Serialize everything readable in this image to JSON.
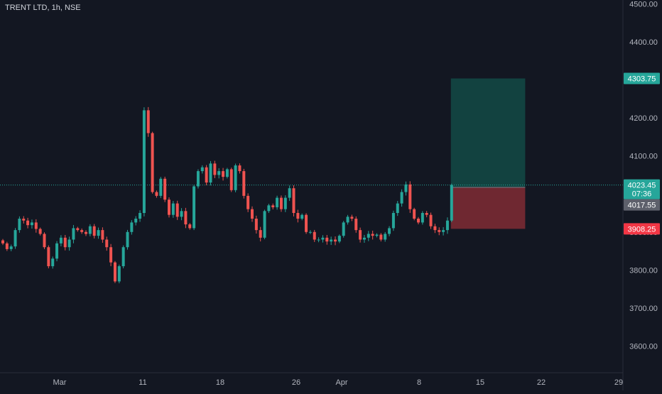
{
  "header": {
    "symbol_title": "TRENT LTD, 1h, NSE"
  },
  "colors": {
    "background": "#131722",
    "up": "#26a69a",
    "down": "#ef5350",
    "axis_text": "#b2b5be",
    "profit_zone": "#134a45",
    "loss_zone": "#7a2a33"
  },
  "chart_data": {
    "type": "candlestick",
    "y_axis": {
      "range": [
        3530,
        4510
      ],
      "ticks": [
        "4500.00",
        "4400.00",
        "4300.00",
        "4200.00",
        "4100.00",
        "4000.00",
        "3900.00",
        "3800.00",
        "3700.00",
        "3600.00"
      ],
      "tick_values": [
        4500,
        4400,
        4300,
        4200,
        4100,
        4000,
        3900,
        3800,
        3700,
        3600
      ]
    },
    "x_axis": {
      "ticks": [
        "Mar",
        "11",
        "18",
        "26",
        "Apr",
        "8",
        "15",
        "22",
        "29"
      ]
    },
    "series": [
      {
        "x": 0,
        "close": 3870
      },
      {
        "x": 1,
        "close": 3855
      },
      {
        "x": 2,
        "close": 3862
      },
      {
        "x": 3,
        "close": 3905
      },
      {
        "x": 4,
        "close": 3935
      },
      {
        "x": 5,
        "close": 3930
      },
      {
        "x": 6,
        "close": 3918
      },
      {
        "x": 7,
        "close": 3925
      },
      {
        "x": 8,
        "close": 3908
      },
      {
        "x": 9,
        "close": 3895
      },
      {
        "x": 10,
        "close": 3860
      },
      {
        "x": 11,
        "close": 3810
      },
      {
        "x": 12,
        "close": 3830
      },
      {
        "x": 13,
        "close": 3870
      },
      {
        "x": 14,
        "close": 3885
      },
      {
        "x": 15,
        "close": 3860
      },
      {
        "x": 16,
        "close": 3880
      },
      {
        "x": 17,
        "close": 3910
      },
      {
        "x": 18,
        "close": 3905
      },
      {
        "x": 19,
        "close": 3900
      },
      {
        "x": 20,
        "close": 3895
      },
      {
        "x": 21,
        "close": 3915
      },
      {
        "x": 22,
        "close": 3890
      },
      {
        "x": 23,
        "close": 3905
      },
      {
        "x": 24,
        "close": 3880
      },
      {
        "x": 25,
        "close": 3860
      },
      {
        "x": 26,
        "close": 3820
      },
      {
        "x": 27,
        "close": 3770
      },
      {
        "x": 28,
        "close": 3810
      },
      {
        "x": 29,
        "close": 3860
      },
      {
        "x": 30,
        "close": 3900
      },
      {
        "x": 31,
        "close": 3925
      },
      {
        "x": 32,
        "close": 3935
      },
      {
        "x": 33,
        "close": 3950
      },
      {
        "x": 34,
        "close": 4220
      },
      {
        "x": 35,
        "close": 4160
      },
      {
        "x": 36,
        "close": 4005
      },
      {
        "x": 37,
        "close": 3995
      },
      {
        "x": 38,
        "close": 4040
      },
      {
        "x": 39,
        "close": 3985
      },
      {
        "x": 40,
        "close": 3945
      },
      {
        "x": 41,
        "close": 3975
      },
      {
        "x": 42,
        "close": 3940
      },
      {
        "x": 43,
        "close": 3955
      },
      {
        "x": 44,
        "close": 3920
      },
      {
        "x": 45,
        "close": 3910
      },
      {
        "x": 46,
        "close": 4020
      },
      {
        "x": 47,
        "close": 4060
      },
      {
        "x": 48,
        "close": 4070
      },
      {
        "x": 49,
        "close": 4030
      },
      {
        "x": 50,
        "close": 4080
      },
      {
        "x": 51,
        "close": 4050
      },
      {
        "x": 52,
        "close": 4060
      },
      {
        "x": 53,
        "close": 4045
      },
      {
        "x": 54,
        "close": 4065
      },
      {
        "x": 55,
        "close": 4010
      },
      {
        "x": 56,
        "close": 4075
      },
      {
        "x": 57,
        "close": 4060
      },
      {
        "x": 58,
        "close": 3995
      },
      {
        "x": 59,
        "close": 3960
      },
      {
        "x": 60,
        "close": 3935
      },
      {
        "x": 61,
        "close": 3905
      },
      {
        "x": 62,
        "close": 3885
      },
      {
        "x": 63,
        "close": 3955
      },
      {
        "x": 64,
        "close": 3970
      },
      {
        "x": 65,
        "close": 3965
      },
      {
        "x": 66,
        "close": 3990
      },
      {
        "x": 67,
        "close": 3960
      },
      {
        "x": 68,
        "close": 3990
      },
      {
        "x": 69,
        "close": 4015
      },
      {
        "x": 70,
        "close": 3950
      },
      {
        "x": 71,
        "close": 3935
      },
      {
        "x": 72,
        "close": 3945
      },
      {
        "x": 73,
        "close": 3900
      },
      {
        "x": 74,
        "close": 3900
      },
      {
        "x": 75,
        "close": 3880
      },
      {
        "x": 76,
        "close": 3880
      },
      {
        "x": 77,
        "close": 3885
      },
      {
        "x": 78,
        "close": 3875
      },
      {
        "x": 79,
        "close": 3880
      },
      {
        "x": 80,
        "close": 3875
      },
      {
        "x": 81,
        "close": 3890
      },
      {
        "x": 82,
        "close": 3925
      },
      {
        "x": 83,
        "close": 3940
      },
      {
        "x": 84,
        "close": 3935
      },
      {
        "x": 85,
        "close": 3905
      },
      {
        "x": 86,
        "close": 3880
      },
      {
        "x": 87,
        "close": 3885
      },
      {
        "x": 88,
        "close": 3895
      },
      {
        "x": 89,
        "close": 3890
      },
      {
        "x": 90,
        "close": 3893
      },
      {
        "x": 91,
        "close": 3880
      },
      {
        "x": 92,
        "close": 3895
      },
      {
        "x": 93,
        "close": 3910
      },
      {
        "x": 94,
        "close": 3950
      },
      {
        "x": 95,
        "close": 3975
      },
      {
        "x": 96,
        "close": 4005
      },
      {
        "x": 97,
        "close": 4025
      },
      {
        "x": 98,
        "close": 3960
      },
      {
        "x": 99,
        "close": 3935
      },
      {
        "x": 100,
        "close": 3925
      },
      {
        "x": 101,
        "close": 3950
      },
      {
        "x": 102,
        "close": 3945
      },
      {
        "x": 103,
        "close": 3915
      },
      {
        "x": 104,
        "close": 3905
      },
      {
        "x": 105,
        "close": 3900
      },
      {
        "x": 106,
        "close": 3905
      },
      {
        "x": 107,
        "close": 3930
      },
      {
        "x": 108,
        "close": 4023.45
      }
    ],
    "position": {
      "entry": 4017.55,
      "target": 4303.75,
      "stop": 3908.25,
      "start_x": 108,
      "end_x": 124
    },
    "last_price": {
      "value": "4023.45",
      "countdown": "07:36"
    },
    "labels": {
      "target": "4303.75",
      "entry": "4017.55",
      "stop": "3908.25"
    }
  }
}
